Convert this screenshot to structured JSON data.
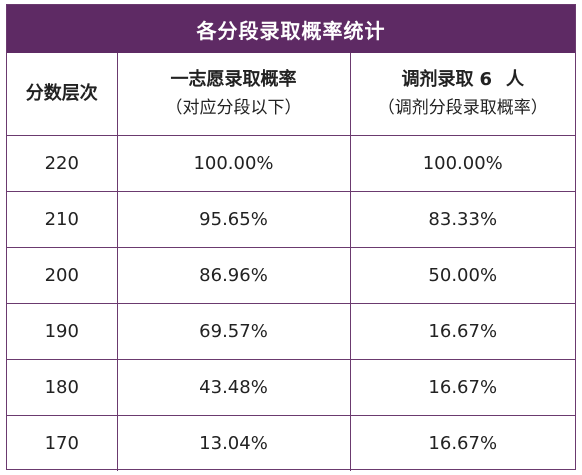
{
  "title": "各分段录取概率统计",
  "headers": {
    "col1": "分数层次",
    "col2_line1": "一志愿录取概率",
    "col2_line2": "（对应分段以下）",
    "col3_prefix": "调剂录取",
    "col3_count": "6",
    "col3_suffix": "人",
    "col3_line2": "（调剂分段录取概率）"
  },
  "rows": [
    {
      "score": "220",
      "first_choice": "100.00%",
      "adjusted": "100.00%"
    },
    {
      "score": "210",
      "first_choice": "95.65%",
      "adjusted": "83.33%"
    },
    {
      "score": "200",
      "first_choice": "86.96%",
      "adjusted": "50.00%"
    },
    {
      "score": "190",
      "first_choice": "69.57%",
      "adjusted": "16.67%"
    },
    {
      "score": "180",
      "first_choice": "43.48%",
      "adjusted": "16.67%"
    },
    {
      "score": "170",
      "first_choice": "13.04%",
      "adjusted": "16.67%"
    }
  ],
  "colors": {
    "title_background": "#5e2a64",
    "title_text": "#ffffff",
    "border": "#6b3a6f"
  }
}
